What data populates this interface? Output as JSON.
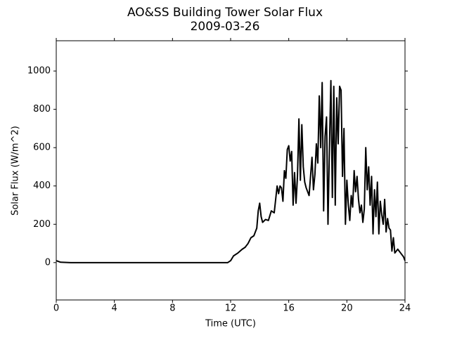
{
  "chart_data": {
    "type": "line",
    "title": "AO&SS Building Tower Solar Flux",
    "subtitle": "2009-03-26",
    "x_label": "Time (UTC)",
    "y_label": "Solar Flux (W/m^2)",
    "color": "#000000",
    "x": [
      0,
      0.3,
      1,
      11.8,
      12,
      12.2,
      12.5,
      12.8,
      13,
      13.2,
      13.4,
      13.6,
      13.8,
      13.9,
      14,
      14.1,
      14.2,
      14.4,
      14.6,
      14.8,
      15,
      15.1,
      15.2,
      15.3,
      15.4,
      15.5,
      15.6,
      15.7,
      15.8,
      15.9,
      16,
      16.1,
      16.2,
      16.3,
      16.4,
      16.5,
      16.6,
      16.7,
      16.8,
      16.9,
      17,
      17.1,
      17.2,
      17.4,
      17.6,
      17.7,
      17.8,
      17.9,
      18,
      18.1,
      18.2,
      18.3,
      18.4,
      18.5,
      18.6,
      18.7,
      18.8,
      18.9,
      19,
      19.1,
      19.2,
      19.3,
      19.4,
      19.5,
      19.6,
      19.7,
      19.8,
      19.9,
      20,
      20.1,
      20.2,
      20.3,
      20.4,
      20.5,
      20.6,
      20.7,
      20.8,
      20.9,
      21,
      21.1,
      21.2,
      21.3,
      21.4,
      21.5,
      21.6,
      21.7,
      21.8,
      21.9,
      22,
      22.1,
      22.2,
      22.3,
      22.4,
      22.5,
      22.6,
      22.7,
      22.8,
      22.9,
      23,
      23.1,
      23.2,
      23.3,
      23.5,
      23.7,
      23.9,
      24
    ],
    "values": [
      10,
      2,
      0,
      0,
      10,
      35,
      50,
      70,
      80,
      100,
      130,
      140,
      180,
      270,
      310,
      240,
      210,
      225,
      220,
      270,
      260,
      330,
      400,
      360,
      400,
      390,
      320,
      480,
      440,
      590,
      610,
      530,
      580,
      300,
      470,
      310,
      450,
      750,
      430,
      720,
      500,
      420,
      390,
      350,
      550,
      380,
      460,
      620,
      520,
      870,
      600,
      940,
      270,
      660,
      760,
      200,
      600,
      950,
      340,
      920,
      300,
      860,
      620,
      920,
      900,
      450,
      700,
      200,
      430,
      300,
      220,
      350,
      290,
      480,
      370,
      450,
      330,
      260,
      300,
      210,
      280,
      600,
      380,
      500,
      300,
      450,
      150,
      380,
      240,
      420,
      150,
      320,
      250,
      200,
      330,
      160,
      230,
      180,
      170,
      60,
      130,
      50,
      70,
      50,
      30,
      10
    ],
    "xlim": [
      0,
      24
    ],
    "xticks": [
      0,
      4,
      8,
      12,
      16,
      20,
      24
    ],
    "ylim": [
      -195,
      1158
    ],
    "yticks": [
      0,
      200,
      400,
      600,
      800,
      1000
    ]
  }
}
